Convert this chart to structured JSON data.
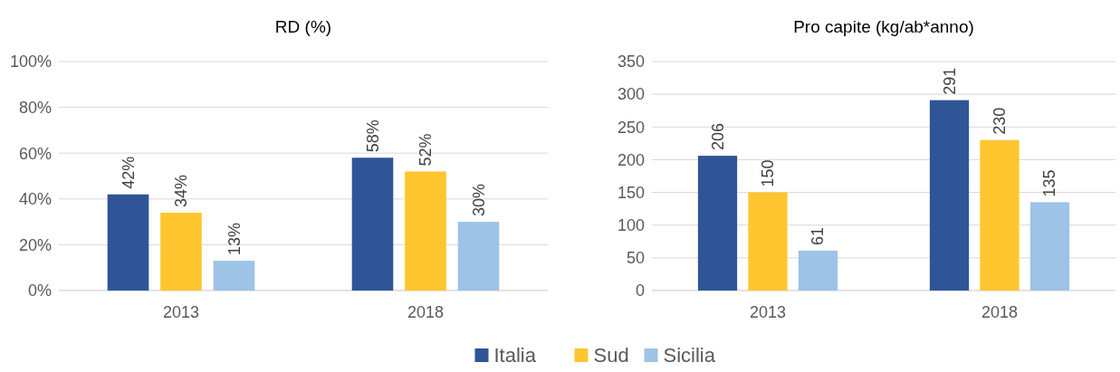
{
  "chart_data": [
    {
      "type": "bar",
      "title": "RD (%)",
      "categories": [
        "2013",
        "2018"
      ],
      "series": [
        {
          "name": "Italia",
          "color": "#2f5597",
          "values": [
            42,
            58
          ]
        },
        {
          "name": "Sud",
          "color": "#ffc62f",
          "values": [
            34,
            52
          ]
        },
        {
          "name": "Sicilia",
          "color": "#9dc3e6",
          "values": [
            13,
            30
          ]
        }
      ],
      "value_labels": [
        [
          "42%",
          "58%"
        ],
        [
          "34%",
          "52%"
        ],
        [
          "13%",
          "30%"
        ]
      ],
      "ylim": [
        0,
        100
      ],
      "yticks": [
        {
          "value": 0,
          "label": "0%"
        },
        {
          "value": 20,
          "label": "20%"
        },
        {
          "value": 40,
          "label": "40%"
        },
        {
          "value": 60,
          "label": "60%"
        },
        {
          "value": 80,
          "label": "80%"
        },
        {
          "value": 100,
          "label": "100%"
        }
      ],
      "grid": "y",
      "legend": "bottom"
    },
    {
      "type": "bar",
      "title": "Pro capite (kg/ab*anno)",
      "categories": [
        "2013",
        "2018"
      ],
      "series": [
        {
          "name": "Italia",
          "color": "#2f5597",
          "values": [
            206,
            291
          ]
        },
        {
          "name": "Sud",
          "color": "#ffc62f",
          "values": [
            150,
            230
          ]
        },
        {
          "name": "Sicilia",
          "color": "#9dc3e6",
          "values": [
            61,
            135
          ]
        }
      ],
      "data_labels": true,
      "ylim": [
        0,
        350
      ],
      "yticks": [
        0,
        50,
        100,
        150,
        200,
        250,
        300,
        350
      ],
      "grid": "y",
      "legend": "bottom"
    }
  ]
}
